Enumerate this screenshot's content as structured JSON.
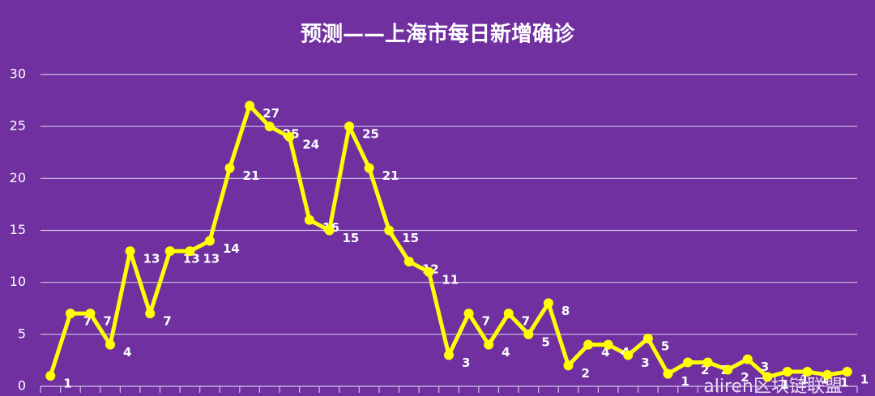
{
  "chart_data": {
    "type": "line",
    "title": "预测——上海市每日新增确诊",
    "color": "#ffff00",
    "grid": true,
    "ylim": [
      0,
      30
    ],
    "yticks": [
      0,
      5,
      10,
      15,
      20,
      25,
      30
    ],
    "values": [
      1,
      7,
      7,
      4,
      13,
      7,
      13,
      13,
      14,
      21,
      27,
      25,
      24,
      16,
      15,
      25,
      21,
      15,
      12,
      11,
      3,
      7,
      4,
      7,
      5,
      8,
      2,
      4,
      4,
      3,
      4.6,
      1.2,
      2.3,
      2.3,
      1.6,
      2.6,
      0.9,
      1.4,
      1.4,
      1.1,
      1.4
    ],
    "value_labels": [
      "1",
      "7",
      "7",
      "4",
      "13",
      "7",
      "13",
      "13",
      "14",
      "21",
      "27",
      "25",
      "24",
      "16",
      "15",
      "25",
      "21",
      "15",
      "12",
      "11",
      "3",
      "7",
      "4",
      "7",
      "5",
      "8",
      "2",
      "4",
      "4",
      "3",
      "5",
      "1",
      "2",
      "2",
      "2",
      "3",
      "1",
      "1",
      "1",
      "1",
      "1"
    ],
    "watermark": "aliren区块链联盟"
  }
}
